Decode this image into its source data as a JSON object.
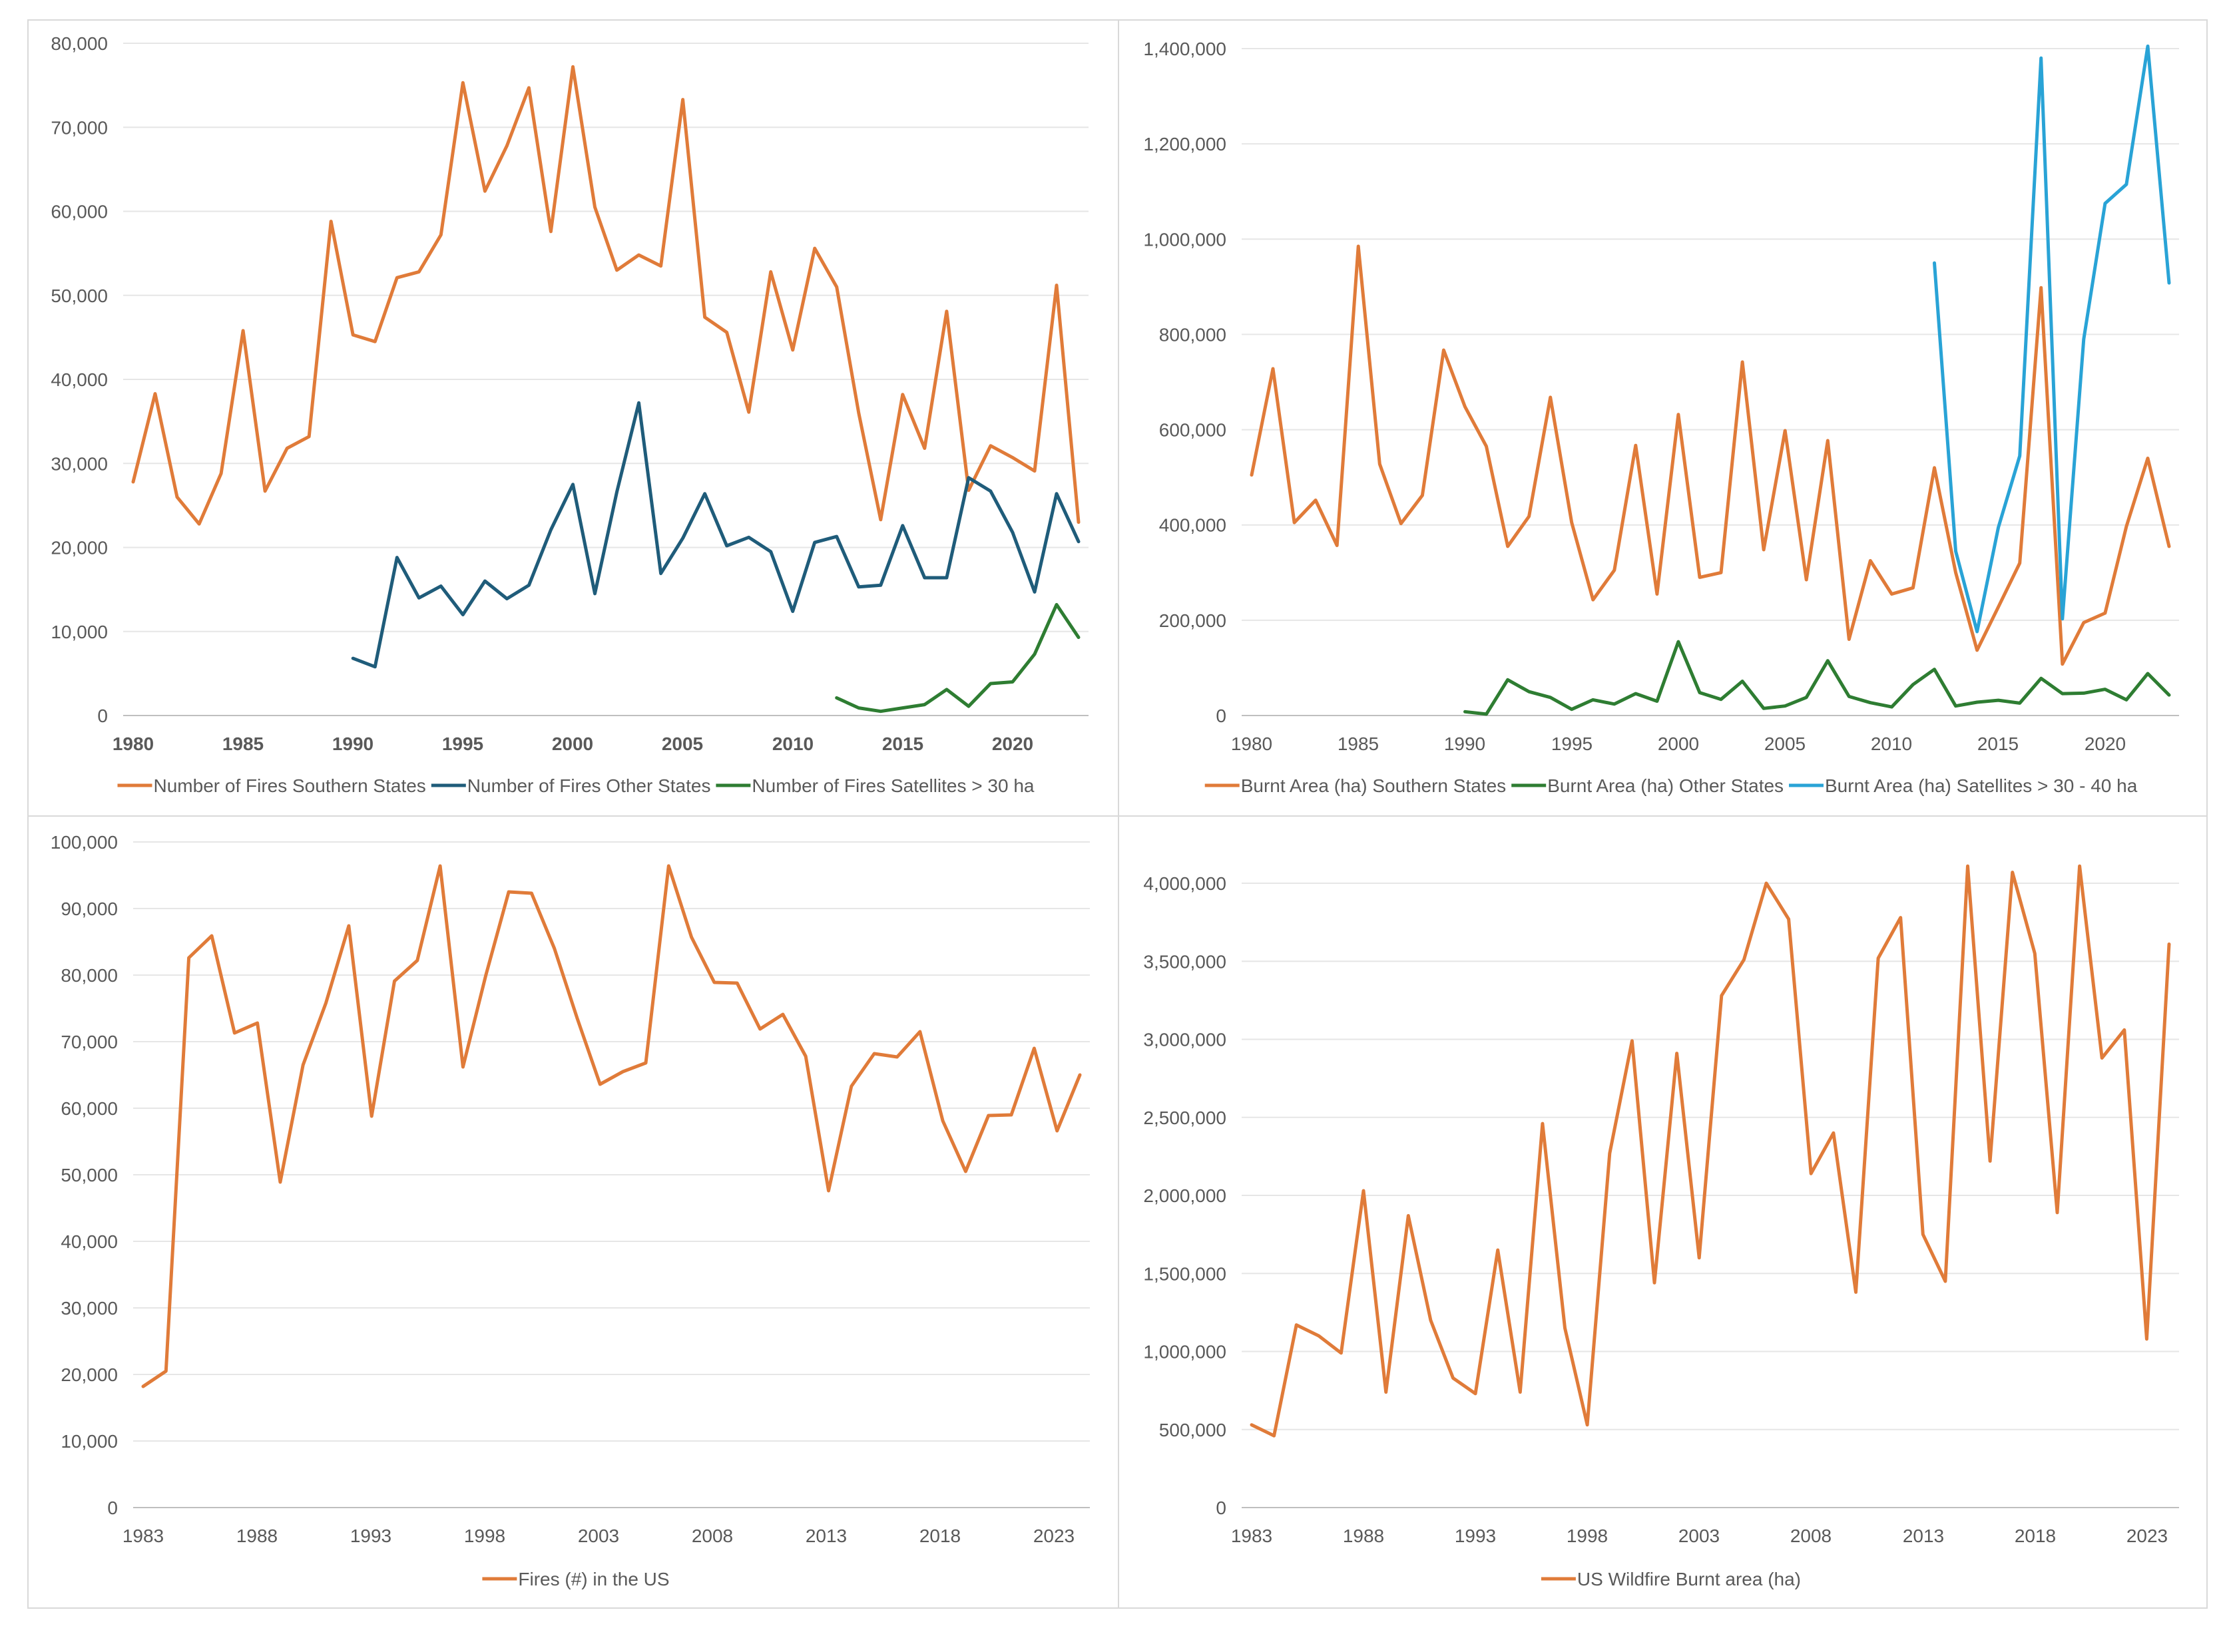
{
  "chart_data": [
    {
      "type": "line",
      "title": "",
      "xlabel": "",
      "ylabel": "",
      "xlim": [
        1980,
        2023
      ],
      "ylim": [
        0,
        80000
      ],
      "y_ticks": [
        0,
        10000,
        20000,
        30000,
        40000,
        50000,
        60000,
        70000,
        80000
      ],
      "y_tick_labels": [
        "0",
        "10,000",
        "20,000",
        "30,000",
        "40,000",
        "50,000",
        "60,000",
        "70,000",
        "80,000"
      ],
      "x_ticks": [
        1980,
        1985,
        1990,
        1995,
        2000,
        2005,
        2010,
        2015,
        2020
      ],
      "x_tick_labels": [
        "1980",
        "1985",
        "1990",
        "1995",
        "2000",
        "2005",
        "2010",
        "2015",
        "2020"
      ],
      "x_tick_bold": true,
      "grid": true,
      "legend_position": "bottom",
      "series": [
        {
          "name": "Number of Fires Southern States",
          "color": "#E07B39",
          "x_start": 1980,
          "values": [
            27800,
            38300,
            26000,
            22800,
            28800,
            45800,
            26700,
            31800,
            33200,
            58800,
            45300,
            44500,
            52100,
            52800,
            57200,
            75300,
            62400,
            67800,
            74700,
            57600,
            77200,
            60500,
            53000,
            54800,
            53500,
            73300,
            47400,
            45600,
            36100,
            52800,
            43500,
            55600,
            51000,
            36000,
            23300,
            38200,
            31800,
            48100,
            26800,
            32100,
            30700,
            29100,
            51200,
            23000
          ]
        },
        {
          "name": "Number of Fires Other States",
          "color": "#1F5C7A",
          "x_start": 1990,
          "values": [
            6800,
            5800,
            18800,
            14000,
            15400,
            12000,
            16000,
            13900,
            15500,
            22100,
            27500,
            14500,
            26600,
            37200,
            16900,
            21100,
            26400,
            20200,
            21200,
            19500,
            12400,
            20600,
            21300,
            15300,
            15500,
            22600,
            16400,
            16400,
            28300,
            26700,
            21800,
            14700,
            26400,
            20700
          ]
        },
        {
          "name": "Number of Fires Satellites > 30 ha",
          "color": "#2E7D32",
          "x_start": 2012,
          "values": [
            2100,
            900,
            500,
            900,
            1300,
            3100,
            1100,
            3800,
            4000,
            7300,
            13200,
            9300
          ]
        }
      ]
    },
    {
      "type": "line",
      "title": "",
      "xlabel": "",
      "ylabel": "",
      "xlim": [
        1980,
        2023
      ],
      "ylim": [
        0,
        1400000
      ],
      "y_ticks": [
        0,
        200000,
        400000,
        600000,
        800000,
        1000000,
        1200000,
        1400000
      ],
      "y_tick_labels": [
        "0",
        "200,000",
        "400,000",
        "600,000",
        "800,000",
        "1,000,000",
        "1,200,000",
        "1,400,000"
      ],
      "x_ticks": [
        1980,
        1985,
        1990,
        1995,
        2000,
        2005,
        2010,
        2015,
        2020
      ],
      "x_tick_labels": [
        "1980",
        "1985",
        "1990",
        "1995",
        "2000",
        "2005",
        "2010",
        "2015",
        "2020"
      ],
      "x_tick_bold": false,
      "grid": true,
      "legend_position": "bottom",
      "series": [
        {
          "name": "Burnt Area (ha) Southern States",
          "color": "#E07B39",
          "x_start": 1980,
          "values": [
            505000,
            728000,
            405000,
            452000,
            357000,
            985000,
            528000,
            403000,
            462000,
            767000,
            648000,
            565000,
            355000,
            418000,
            668000,
            405000,
            243000,
            305000,
            567000,
            255000,
            632000,
            290000,
            300000,
            742000,
            348000,
            598000,
            285000,
            577000,
            160000,
            325000,
            255000,
            268000,
            520000,
            300000,
            137000,
            228000,
            320000,
            898000,
            108000,
            195000,
            215000,
            397000,
            540000,
            355000
          ]
        },
        {
          "name": "Burnt Area (ha) Other States",
          "color": "#2E7D32",
          "x_start": 1990,
          "values": [
            8000,
            3000,
            75000,
            50000,
            38000,
            13000,
            33000,
            24000,
            46000,
            30000,
            155000,
            48000,
            34000,
            72000,
            15000,
            20000,
            38000,
            115000,
            40000,
            27000,
            18000,
            65000,
            97000,
            20000,
            28000,
            32000,
            26000,
            78000,
            46000,
            47000,
            55000,
            33000,
            88000,
            43000
          ]
        },
        {
          "name": "Burnt Area (ha) Satellites > 30 - 40 ha",
          "color": "#29A3D6",
          "x_start": 2012,
          "values": [
            950000,
            345000,
            176000,
            395000,
            545000,
            1380000,
            203000,
            790000,
            1075000,
            1115000,
            1405000,
            908000
          ]
        }
      ]
    },
    {
      "type": "line",
      "title": "",
      "xlabel": "",
      "ylabel": "",
      "xlim": [
        1983,
        2024
      ],
      "ylim": [
        0,
        100000
      ],
      "y_ticks": [
        0,
        10000,
        20000,
        30000,
        40000,
        50000,
        60000,
        70000,
        80000,
        90000,
        100000
      ],
      "y_tick_labels": [
        "0",
        "10,000",
        "20,000",
        "30,000",
        "40,000",
        "50,000",
        "60,000",
        "70,000",
        "80,000",
        "90,000",
        "100,000"
      ],
      "x_ticks": [
        1983,
        1988,
        1993,
        1998,
        2003,
        2008,
        2013,
        2018,
        2023
      ],
      "x_tick_labels": [
        "1983",
        "1988",
        "1993",
        "1998",
        "2003",
        "2008",
        "2013",
        "2018",
        "2023"
      ],
      "x_tick_bold": false,
      "grid": true,
      "legend_position": "bottom",
      "series": [
        {
          "name": "Fires (#) in the US",
          "color": "#E07B39",
          "x_start": 1983,
          "values": [
            18200,
            20500,
            82600,
            85900,
            71300,
            72800,
            48900,
            66500,
            75800,
            87400,
            58800,
            79100,
            82200,
            96400,
            66200,
            80000,
            92500,
            92300,
            84000,
            73500,
            63600,
            65500,
            66800,
            96400,
            85700,
            78900,
            78800,
            71900,
            74100,
            67800,
            47600,
            63300,
            68200,
            67700,
            71500,
            58100,
            50500,
            58900,
            59000,
            69000,
            56600,
            65000
          ]
        }
      ]
    },
    {
      "type": "line",
      "title": "",
      "xlabel": "",
      "ylabel": "",
      "xlim": [
        1983,
        2024
      ],
      "ylim": [
        0,
        4000000
      ],
      "y_ticks": [
        0,
        500000,
        1000000,
        1500000,
        2000000,
        2500000,
        3000000,
        3500000,
        4000000
      ],
      "y_tick_labels": [
        "0",
        "500,000",
        "1,000,000",
        "1,500,000",
        "2,000,000",
        "2,500,000",
        "3,000,000",
        "3,500,000",
        "4,000,000"
      ],
      "x_ticks": [
        1983,
        1988,
        1993,
        1998,
        2003,
        2008,
        2013,
        2018,
        2023
      ],
      "x_tick_labels": [
        "1983",
        "1988",
        "1993",
        "1998",
        "2003",
        "2008",
        "2013",
        "2018",
        "2023"
      ],
      "x_tick_bold": false,
      "grid": true,
      "legend_position": "bottom",
      "series": [
        {
          "name": "US Wildfire Burnt area (ha)",
          "color": "#E07B39",
          "x_start": 1983,
          "values": [
            530000,
            460000,
            1170000,
            1100000,
            990000,
            2030000,
            740000,
            1870000,
            1200000,
            830000,
            730000,
            1650000,
            740000,
            2460000,
            1150000,
            530000,
            2270000,
            2990000,
            1440000,
            2910000,
            1600000,
            3280000,
            3510000,
            4000000,
            3770000,
            2140000,
            2400000,
            1380000,
            3520000,
            3780000,
            1750000,
            1450000,
            4110000,
            2220000,
            4070000,
            3550000,
            1890000,
            4110000,
            2880000,
            3060000,
            1080000,
            3610000
          ]
        }
      ]
    }
  ]
}
